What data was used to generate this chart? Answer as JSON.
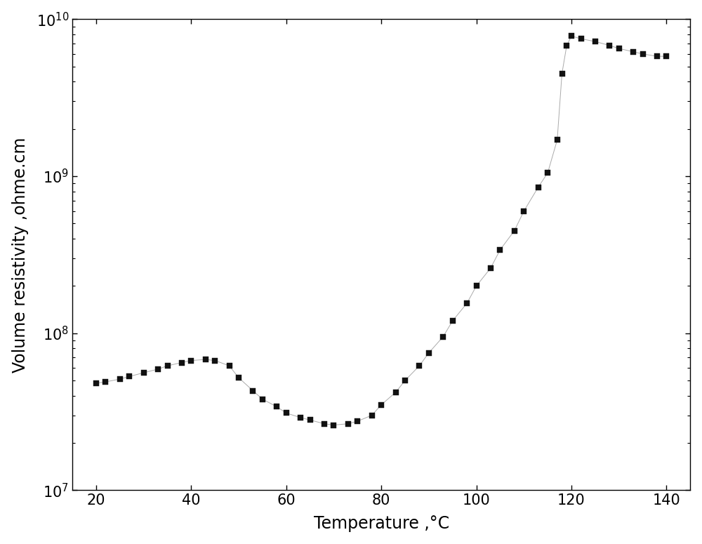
{
  "title": "",
  "xlabel": "Temperature ,°C",
  "ylabel": "Volume resistivity ,ohme.cm",
  "xlim": [
    15,
    145
  ],
  "ylim": [
    10000000.0,
    10000000000.0
  ],
  "xticks": [
    20,
    40,
    60,
    80,
    100,
    120,
    140
  ],
  "background_color": "#ffffff",
  "line_color": "#aaaaaa",
  "marker_color": "#111111",
  "marker_size": 6,
  "line_width": 0.7,
  "temperature": [
    20,
    22,
    25,
    27,
    30,
    33,
    35,
    38,
    40,
    43,
    45,
    48,
    50,
    53,
    55,
    58,
    60,
    63,
    65,
    68,
    70,
    73,
    75,
    78,
    80,
    83,
    85,
    88,
    90,
    93,
    95,
    98,
    100,
    103,
    105,
    108,
    110,
    113,
    115,
    117,
    118,
    119,
    120,
    122,
    125,
    128,
    130,
    133,
    135,
    138,
    140
  ],
  "resistivity": [
    48000000.0,
    49000000.0,
    51000000.0,
    53000000.0,
    56000000.0,
    59000000.0,
    62000000.0,
    65000000.0,
    67000000.0,
    68000000.0,
    67000000.0,
    62000000.0,
    52000000.0,
    43000000.0,
    38000000.0,
    34000000.0,
    31000000.0,
    29000000.0,
    28000000.0,
    26500000.0,
    26000000.0,
    26500000.0,
    27500000.0,
    30000000.0,
    35000000.0,
    42000000.0,
    50000000.0,
    62000000.0,
    75000000.0,
    95000000.0,
    120000000.0,
    155000000.0,
    200000000.0,
    260000000.0,
    340000000.0,
    450000000.0,
    600000000.0,
    850000000.0,
    1050000000.0,
    1700000000.0,
    4500000000.0,
    6800000000.0,
    7800000000.0,
    7500000000.0,
    7200000000.0,
    6800000000.0,
    6500000000.0,
    6200000000.0,
    6000000000.0,
    5800000000.0,
    5800000000.0
  ]
}
